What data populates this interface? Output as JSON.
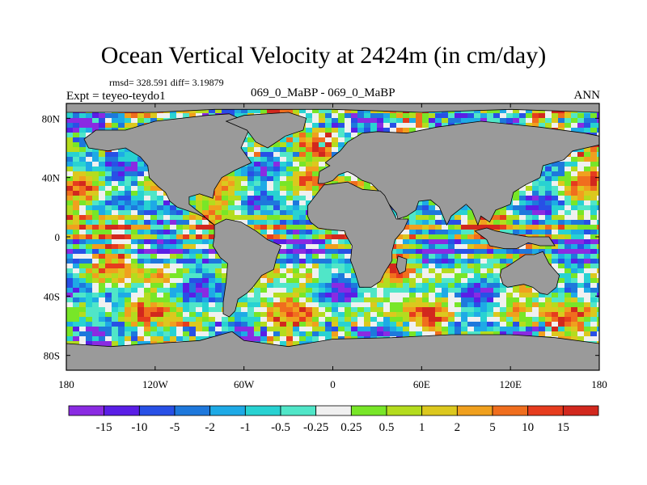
{
  "title": "Ocean Vertical Velocity at 2424m (in cm/day)",
  "stats": "rmsd= 328.591 diff= 3.19879",
  "experiment": "Expt = teyeo-teydo1",
  "case_label": "069_0_MaBP - 069_0_MaBP",
  "season": "ANN",
  "lat_ticks": [
    "80N",
    "40N",
    "0",
    "40S",
    "80S"
  ],
  "lon_ticks": [
    "180",
    "120W",
    "60W",
    "0",
    "60E",
    "120E",
    "180"
  ],
  "colorbar": {
    "labels": [
      "-15",
      "-10",
      "-5",
      "-2",
      "-1",
      "-0.5",
      "-0.25",
      "0.25",
      "0.5",
      "1",
      "2",
      "5",
      "10",
      "15"
    ],
    "colors": [
      "#8a2be2",
      "#5a1ee6",
      "#2850e6",
      "#1e78dc",
      "#1eaae6",
      "#28d2d2",
      "#50e6c8",
      "#f0f0f0",
      "#78e628",
      "#b4dc1e",
      "#dcc81e",
      "#f0a01e",
      "#f06e1e",
      "#e63c1e",
      "#d2281e"
    ]
  },
  "colors": {
    "land": "#9a9a9a",
    "frame": "#000000"
  }
}
